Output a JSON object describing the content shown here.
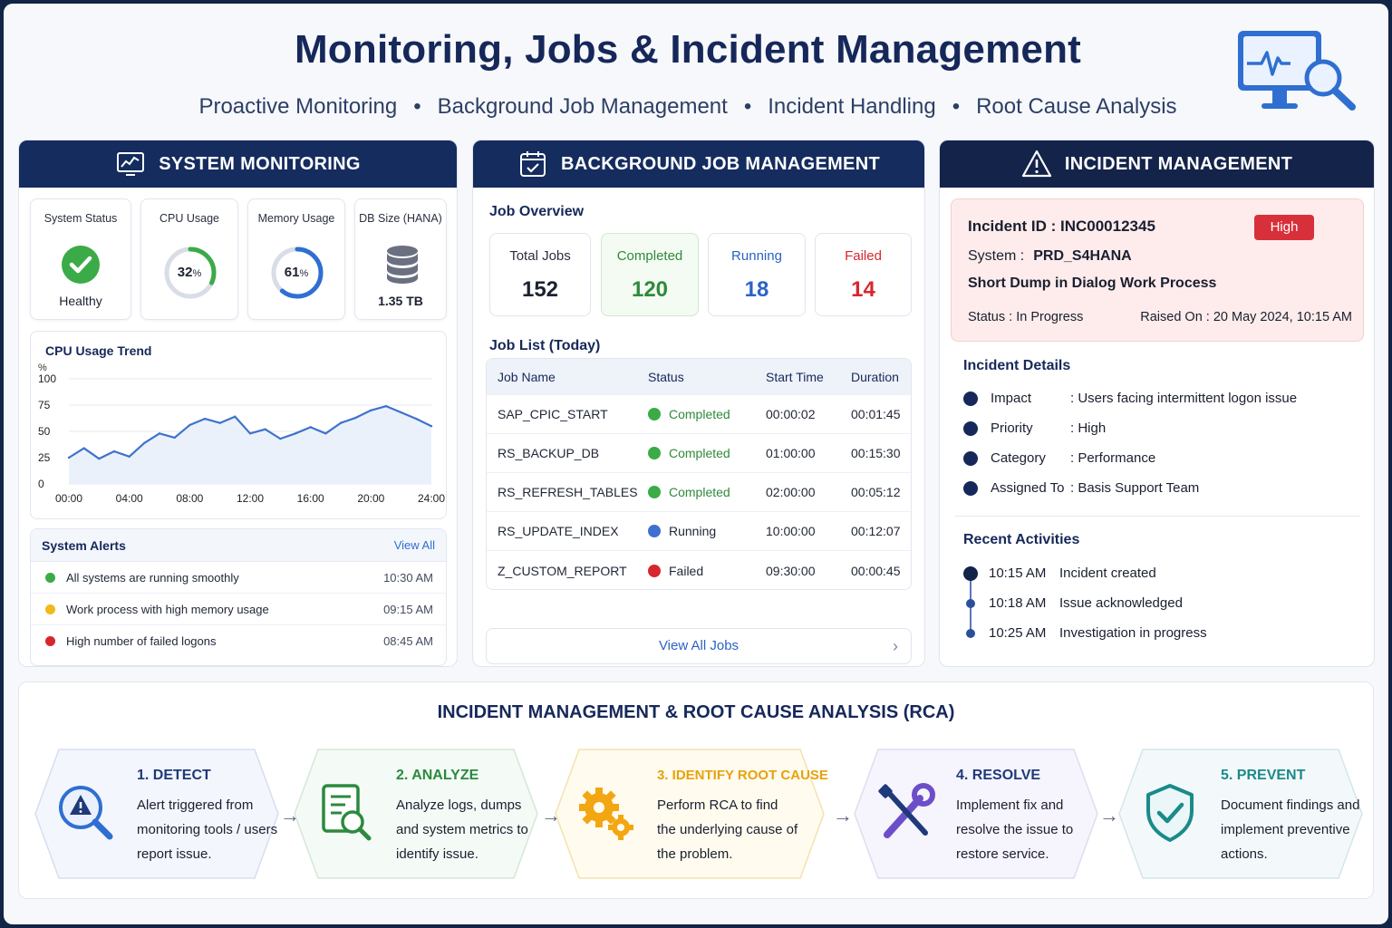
{
  "header": {
    "title": "Monitoring, Jobs & Incident Management",
    "subtitle_items": [
      "Proactive Monitoring",
      "Background Job Management",
      "Incident Handling",
      "Root Cause Analysis"
    ],
    "separator": "•",
    "icon": "monitor-search-icon"
  },
  "system_monitoring": {
    "heading": "SYSTEM MONITORING",
    "cards": {
      "status": {
        "label": "System Status",
        "value": "Healthy"
      },
      "cpu": {
        "label": "CPU Usage",
        "value": "32",
        "unit": "%",
        "percent": 32
      },
      "memory": {
        "label": "Memory Usage",
        "value": "61",
        "unit": "%",
        "percent": 61
      },
      "db": {
        "label": "DB Size (HANA)",
        "value": "1.35 TB"
      }
    },
    "trend_title": "CPU Usage Trend",
    "alerts": {
      "title": "System Alerts",
      "view_all": "View All",
      "items": [
        {
          "message": "All systems are running smoothly",
          "time": "10:30 AM",
          "color": "#3aab47"
        },
        {
          "message": "Work process with high memory usage",
          "time": "09:15 AM",
          "color": "#f2b91a"
        },
        {
          "message": "High number of failed logons",
          "time": "08:45 AM",
          "color": "#d8262e"
        }
      ]
    }
  },
  "chart_data": {
    "type": "area",
    "title": "CPU Usage Trend",
    "ylabel": "%",
    "xlabel": "",
    "ylim": [
      0,
      100
    ],
    "yticks": [
      0,
      25,
      50,
      75,
      100
    ],
    "xticks": [
      "00:00",
      "04:00",
      "08:00",
      "12:00",
      "16:00",
      "20:00",
      "24:00"
    ],
    "x": [
      0,
      1,
      2,
      3,
      4,
      5,
      6,
      7,
      8,
      9,
      10,
      11,
      12,
      13,
      14,
      15,
      16,
      17,
      18,
      19,
      20,
      21,
      22,
      23,
      24
    ],
    "values": [
      25,
      34,
      24,
      31,
      26,
      39,
      48,
      44,
      56,
      62,
      58,
      64,
      48,
      52,
      43,
      48,
      54,
      48,
      58,
      63,
      70,
      74,
      68,
      62,
      55
    ],
    "grid": true
  },
  "jobs": {
    "heading": "BACKGROUND JOB MANAGEMENT",
    "overview_title": "Job Overview",
    "overview": [
      {
        "label": "Total Jobs",
        "value": "152"
      },
      {
        "label": "Completed",
        "value": "120"
      },
      {
        "label": "Running",
        "value": "18"
      },
      {
        "label": "Failed",
        "value": "14"
      }
    ],
    "list_title": "Job List (Today)",
    "columns": [
      "Job Name",
      "Status",
      "Start Time",
      "Duration"
    ],
    "rows": [
      {
        "name": "SAP_CPIC_START",
        "status": "Completed",
        "start": "00:00:02",
        "duration": "00:01:45"
      },
      {
        "name": "RS_BACKUP_DB",
        "status": "Completed",
        "start": "01:00:00",
        "duration": "00:15:30"
      },
      {
        "name": "RS_REFRESH_TABLES",
        "status": "Completed",
        "start": "02:00:00",
        "duration": "00:05:12"
      },
      {
        "name": "RS_UPDATE_INDEX",
        "status": "Running",
        "start": "10:00:00",
        "duration": "00:12:07"
      },
      {
        "name": "Z_CUSTOM_REPORT",
        "status": "Failed",
        "start": "09:30:00",
        "duration": "00:00:45"
      }
    ],
    "view_all": "View All Jobs"
  },
  "incident": {
    "heading": "INCIDENT MANAGEMENT",
    "id_line": "Incident ID : INC00012345",
    "priority_badge": "High",
    "system_label": "System :",
    "system_value": "PRD_S4HANA",
    "summary": "Short Dump in Dialog Work Process",
    "status_line": "Status :  In Progress",
    "raised_line": "Raised On : 20 May 2024, 10:15 AM",
    "details_title": "Incident Details",
    "details": [
      {
        "key": "Impact",
        "value": ": Users facing intermittent logon issue"
      },
      {
        "key": "Priority",
        "value": ": High"
      },
      {
        "key": "Category",
        "value": ": Performance"
      },
      {
        "key": "Assigned To",
        "value": ":  Basis Support Team"
      }
    ],
    "activities_title": "Recent Activities",
    "activities": [
      {
        "time": "10:15 AM",
        "text": "Incident created"
      },
      {
        "time": "10:18 AM",
        "text": "Issue acknowledged"
      },
      {
        "time": "10:25 AM",
        "text": "Investigation in progress"
      }
    ]
  },
  "rca": {
    "title": "INCIDENT MANAGEMENT & ROOT CAUSE ANALYSIS (RCA)",
    "arrow": "→",
    "steps": [
      {
        "title": "1.  DETECT",
        "text": "Alert triggered from monitoring tools / users report issue.",
        "color": "#1f3a7a",
        "icon": "alert-search-icon"
      },
      {
        "title": "2. ANALYZE",
        "text": "Analyze logs, dumps and system metrics to identify issue.",
        "color": "#2b8a3e",
        "icon": "document-search-icon"
      },
      {
        "title": "3. IDENTIFY ROOT CAUSE",
        "text": "Perform RCA to find the underlying cause of the problem.",
        "color": "#e8a10c",
        "icon": "gears-icon"
      },
      {
        "title": "4. RESOLVE",
        "text": "Implement fix and resolve the issue to restore service.",
        "color": "#1f3a7a",
        "icon": "wrench-screwdriver-icon"
      },
      {
        "title": "5. PREVENT",
        "text": "Document findings and implement preventive actions.",
        "color": "#1b8a8a",
        "icon": "shield-check-icon"
      }
    ]
  }
}
